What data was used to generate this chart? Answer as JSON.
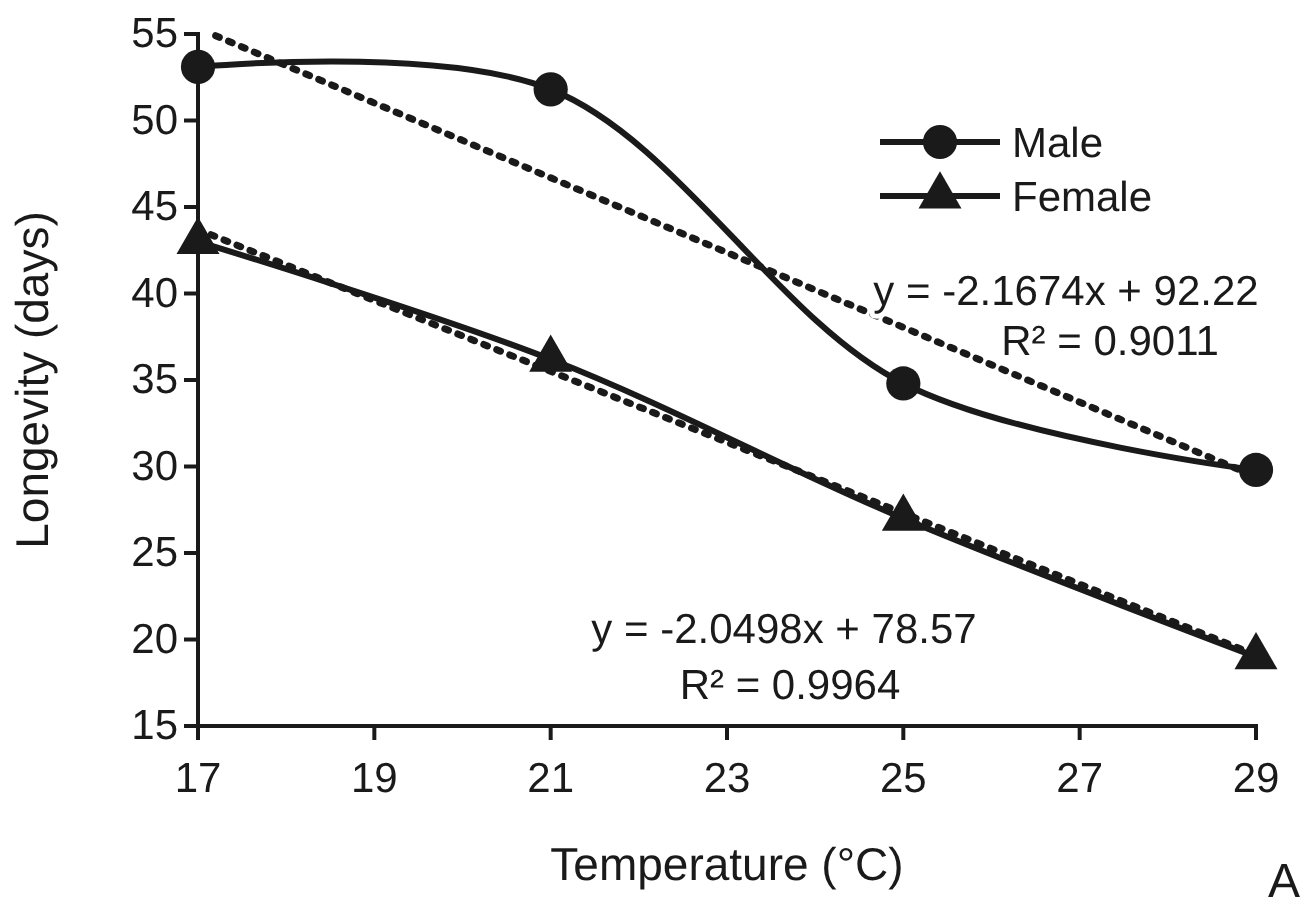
{
  "chart_data": {
    "type": "line",
    "xlabel": "Temperature (°C)",
    "ylabel": "Longevity (days)",
    "x": [
      17,
      21,
      25,
      29
    ],
    "xlim": [
      17,
      29
    ],
    "xticks": [
      17,
      19,
      21,
      23,
      25,
      27,
      29
    ],
    "ylim": [
      15,
      55
    ],
    "yticks": [
      15,
      20,
      25,
      30,
      35,
      40,
      45,
      50,
      55
    ],
    "grid": false,
    "legend": "top right",
    "series": [
      {
        "name": "Male",
        "color": "#1a1a1a",
        "values": [
          53.1,
          51.8,
          34.8,
          29.8
        ],
        "marker": "circle",
        "line_style": "solid"
      },
      {
        "name": "Female",
        "color": "#1a1a1a",
        "values": [
          43.0,
          36.2,
          27.0,
          19.0
        ],
        "marker": "triangle",
        "line_style": "solid"
      },
      {
        "type": "line",
        "color": "#1a1a1a",
        "x": [
          17.2,
          29
        ],
        "values": [
          54.9,
          29.4
        ],
        "marker": "none",
        "line_style": "dotted"
      },
      {
        "type": "line",
        "color": "#1a1a1a",
        "x": [
          17,
          29
        ],
        "values": [
          43.7,
          19.1
        ],
        "marker": "none",
        "line_style": "dotted"
      }
    ],
    "annotations": [
      "y = -2.1674x + 92.22",
      "R² = 0.9011",
      "y = -2.0498x + 78.57",
      "R² = 0.9964",
      "A"
    ]
  }
}
